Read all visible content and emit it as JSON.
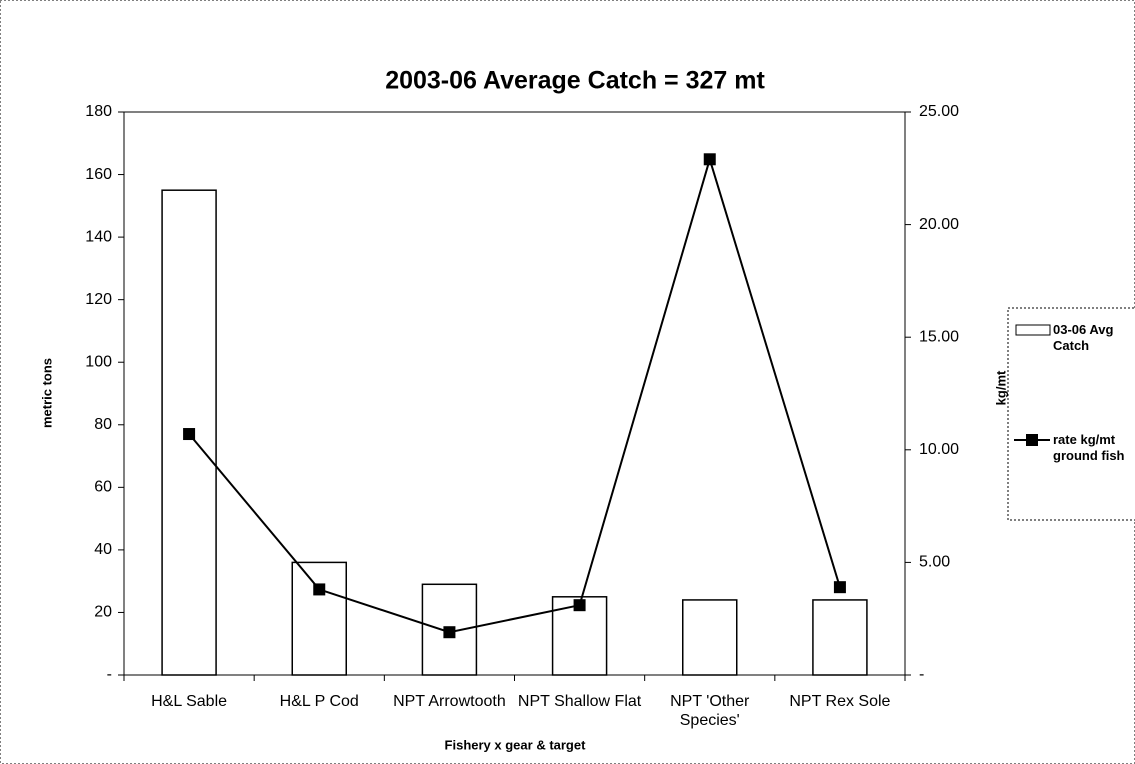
{
  "chart_data": {
    "type": "bar-line",
    "title": "2003-06 Average Catch = 327 mt",
    "x_label": "Fishery x gear & target",
    "y_label": "metric tons",
    "y2_label": "kg/mt",
    "categories": [
      "H&L Sable",
      "H&L P Cod",
      "NPT Arrowtooth",
      "NPT Shallow Flat",
      "NPT 'Other Species'",
      "NPT Rex Sole"
    ],
    "series": [
      {
        "name": "03-06 Avg Catch",
        "type": "bar",
        "color": "#ffffff",
        "values": [
          155,
          36,
          29,
          25,
          24,
          24
        ]
      },
      {
        "name": "rate kg/mt ground fish",
        "type": "line",
        "axis": "y2",
        "color": "#000000",
        "values": [
          10.7,
          3.8,
          1.9,
          3.1,
          22.9,
          3.9
        ]
      }
    ],
    "ylim": [
      0,
      180
    ],
    "yticks": [
      {
        "value": 0,
        "label": "-"
      },
      20,
      40,
      60,
      80,
      100,
      120,
      140,
      160,
      180
    ],
    "y2lim": [
      0,
      25
    ],
    "y2ticks": [
      {
        "value": 0,
        "label": "-"
      },
      {
        "value": 5,
        "label": "5.00"
      },
      {
        "value": 10,
        "label": "10.00"
      },
      {
        "value": 15,
        "label": "15.00"
      },
      {
        "value": 20,
        "label": "20.00"
      },
      {
        "value": 25,
        "label": "25.00"
      }
    ],
    "legend": "right"
  }
}
